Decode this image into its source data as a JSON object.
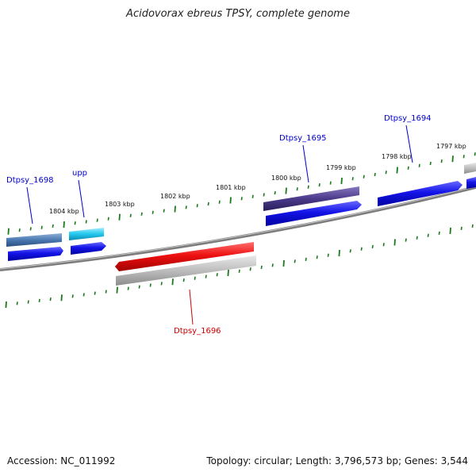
{
  "title": "Acidovorax ebreus TPSY, complete genome",
  "footer": {
    "accession": "Accession: NC_011992",
    "summary": "Topology: circular; Length: 3,796,573 bp; Genes: 3,544"
  },
  "ticks": [
    "1804 kbp",
    "1803 kbp",
    "1802 kbp",
    "1801 kbp",
    "1800 kbp",
    "1799 kbp",
    "1798 kbp",
    "1797 kbp"
  ],
  "gene_labels": {
    "dtpsy_1698": "Dtpsy_1698",
    "upp": "upp",
    "dtpsy_1695": "Dtpsy_1695",
    "dtpsy_1694": "Dtpsy_1694",
    "dtpsy_1696": "Dtpsy_1696"
  },
  "colors": {
    "backbone": "#808080",
    "tick": "#1a7a1a",
    "cds": "#1010e0",
    "label_blue": "#0000cc",
    "label_red": "#cc0000",
    "gene_red": "#ee1111",
    "gene_gray": "#b8b8b8",
    "gene_steel": "#4a78b0",
    "gene_cyan": "#22c8ee",
    "gene_purple": "#4a3a8a"
  }
}
